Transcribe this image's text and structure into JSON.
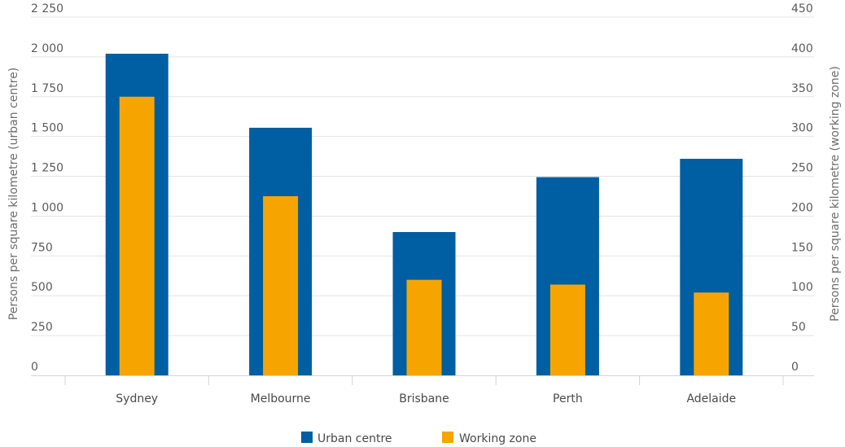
{
  "chart_data": {
    "type": "bar",
    "categories": [
      "Sydney",
      "Melbourne",
      "Brisbane",
      "Perth",
      "Adelaide"
    ],
    "series": [
      {
        "name": "Urban centre",
        "axis": "left",
        "color": "#005ea2",
        "values": [
          2020,
          1555,
          900,
          1245,
          1360
        ]
      },
      {
        "name": "Working zone",
        "axis": "right",
        "color": "#f6a500",
        "values": [
          350,
          225,
          120,
          114,
          104
        ]
      }
    ],
    "left_axis": {
      "label": "Persons per square kilometre (urban centre)",
      "min": 0,
      "max": 2250,
      "ticks": [
        0,
        250,
        500,
        750,
        1000,
        1250,
        1500,
        1750,
        2000,
        2250
      ],
      "tick_labels": [
        "0",
        "250",
        "500",
        "750",
        "1 000",
        "1 250",
        "1 500",
        "1 750",
        "2 000",
        "2 250"
      ]
    },
    "right_axis": {
      "label": "Persons per square kilometre (working zone)",
      "min": 0,
      "max": 450,
      "ticks": [
        0,
        50,
        100,
        150,
        200,
        250,
        300,
        350,
        400,
        450
      ],
      "tick_labels": [
        "0",
        "50",
        "100",
        "150",
        "200",
        "250",
        "300",
        "350",
        "400",
        "450"
      ]
    },
    "grid": true,
    "legend_position": "bottom-center"
  }
}
